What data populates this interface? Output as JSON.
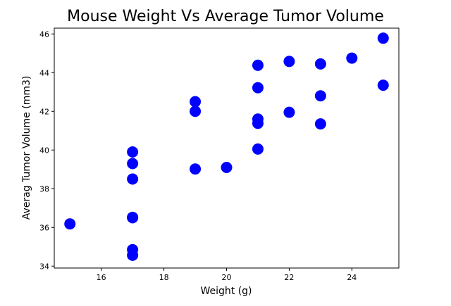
{
  "chart_data": {
    "type": "scatter",
    "title": "Mouse Weight Vs Average Tumor Volume",
    "xlabel": "Weight (g)",
    "ylabel": "Averag Tumor Volume (mm3)",
    "xlim": [
      14.5,
      25.5
    ],
    "ylim": [
      33.9,
      46.3
    ],
    "xticks": [
      16,
      18,
      20,
      22,
      24
    ],
    "yticks": [
      34,
      36,
      38,
      40,
      42,
      44,
      46
    ],
    "grid": false,
    "marker_color": "#0000ff",
    "points": [
      {
        "x": 15,
        "y": 36.18
      },
      {
        "x": 17,
        "y": 34.56
      },
      {
        "x": 17,
        "y": 34.85
      },
      {
        "x": 17,
        "y": 36.5
      },
      {
        "x": 17,
        "y": 36.52
      },
      {
        "x": 17,
        "y": 38.5
      },
      {
        "x": 17,
        "y": 39.3
      },
      {
        "x": 17,
        "y": 39.9
      },
      {
        "x": 19,
        "y": 39.02
      },
      {
        "x": 19,
        "y": 42.0
      },
      {
        "x": 19,
        "y": 42.5
      },
      {
        "x": 20,
        "y": 39.1
      },
      {
        "x": 21,
        "y": 40.05
      },
      {
        "x": 21,
        "y": 41.38
      },
      {
        "x": 21,
        "y": 41.6
      },
      {
        "x": 21,
        "y": 43.22
      },
      {
        "x": 21,
        "y": 44.38
      },
      {
        "x": 22,
        "y": 41.95
      },
      {
        "x": 22,
        "y": 44.58
      },
      {
        "x": 23,
        "y": 41.35
      },
      {
        "x": 23,
        "y": 42.8
      },
      {
        "x": 23,
        "y": 44.45
      },
      {
        "x": 24,
        "y": 44.75
      },
      {
        "x": 25,
        "y": 43.35
      },
      {
        "x": 25,
        "y": 45.78
      }
    ]
  }
}
